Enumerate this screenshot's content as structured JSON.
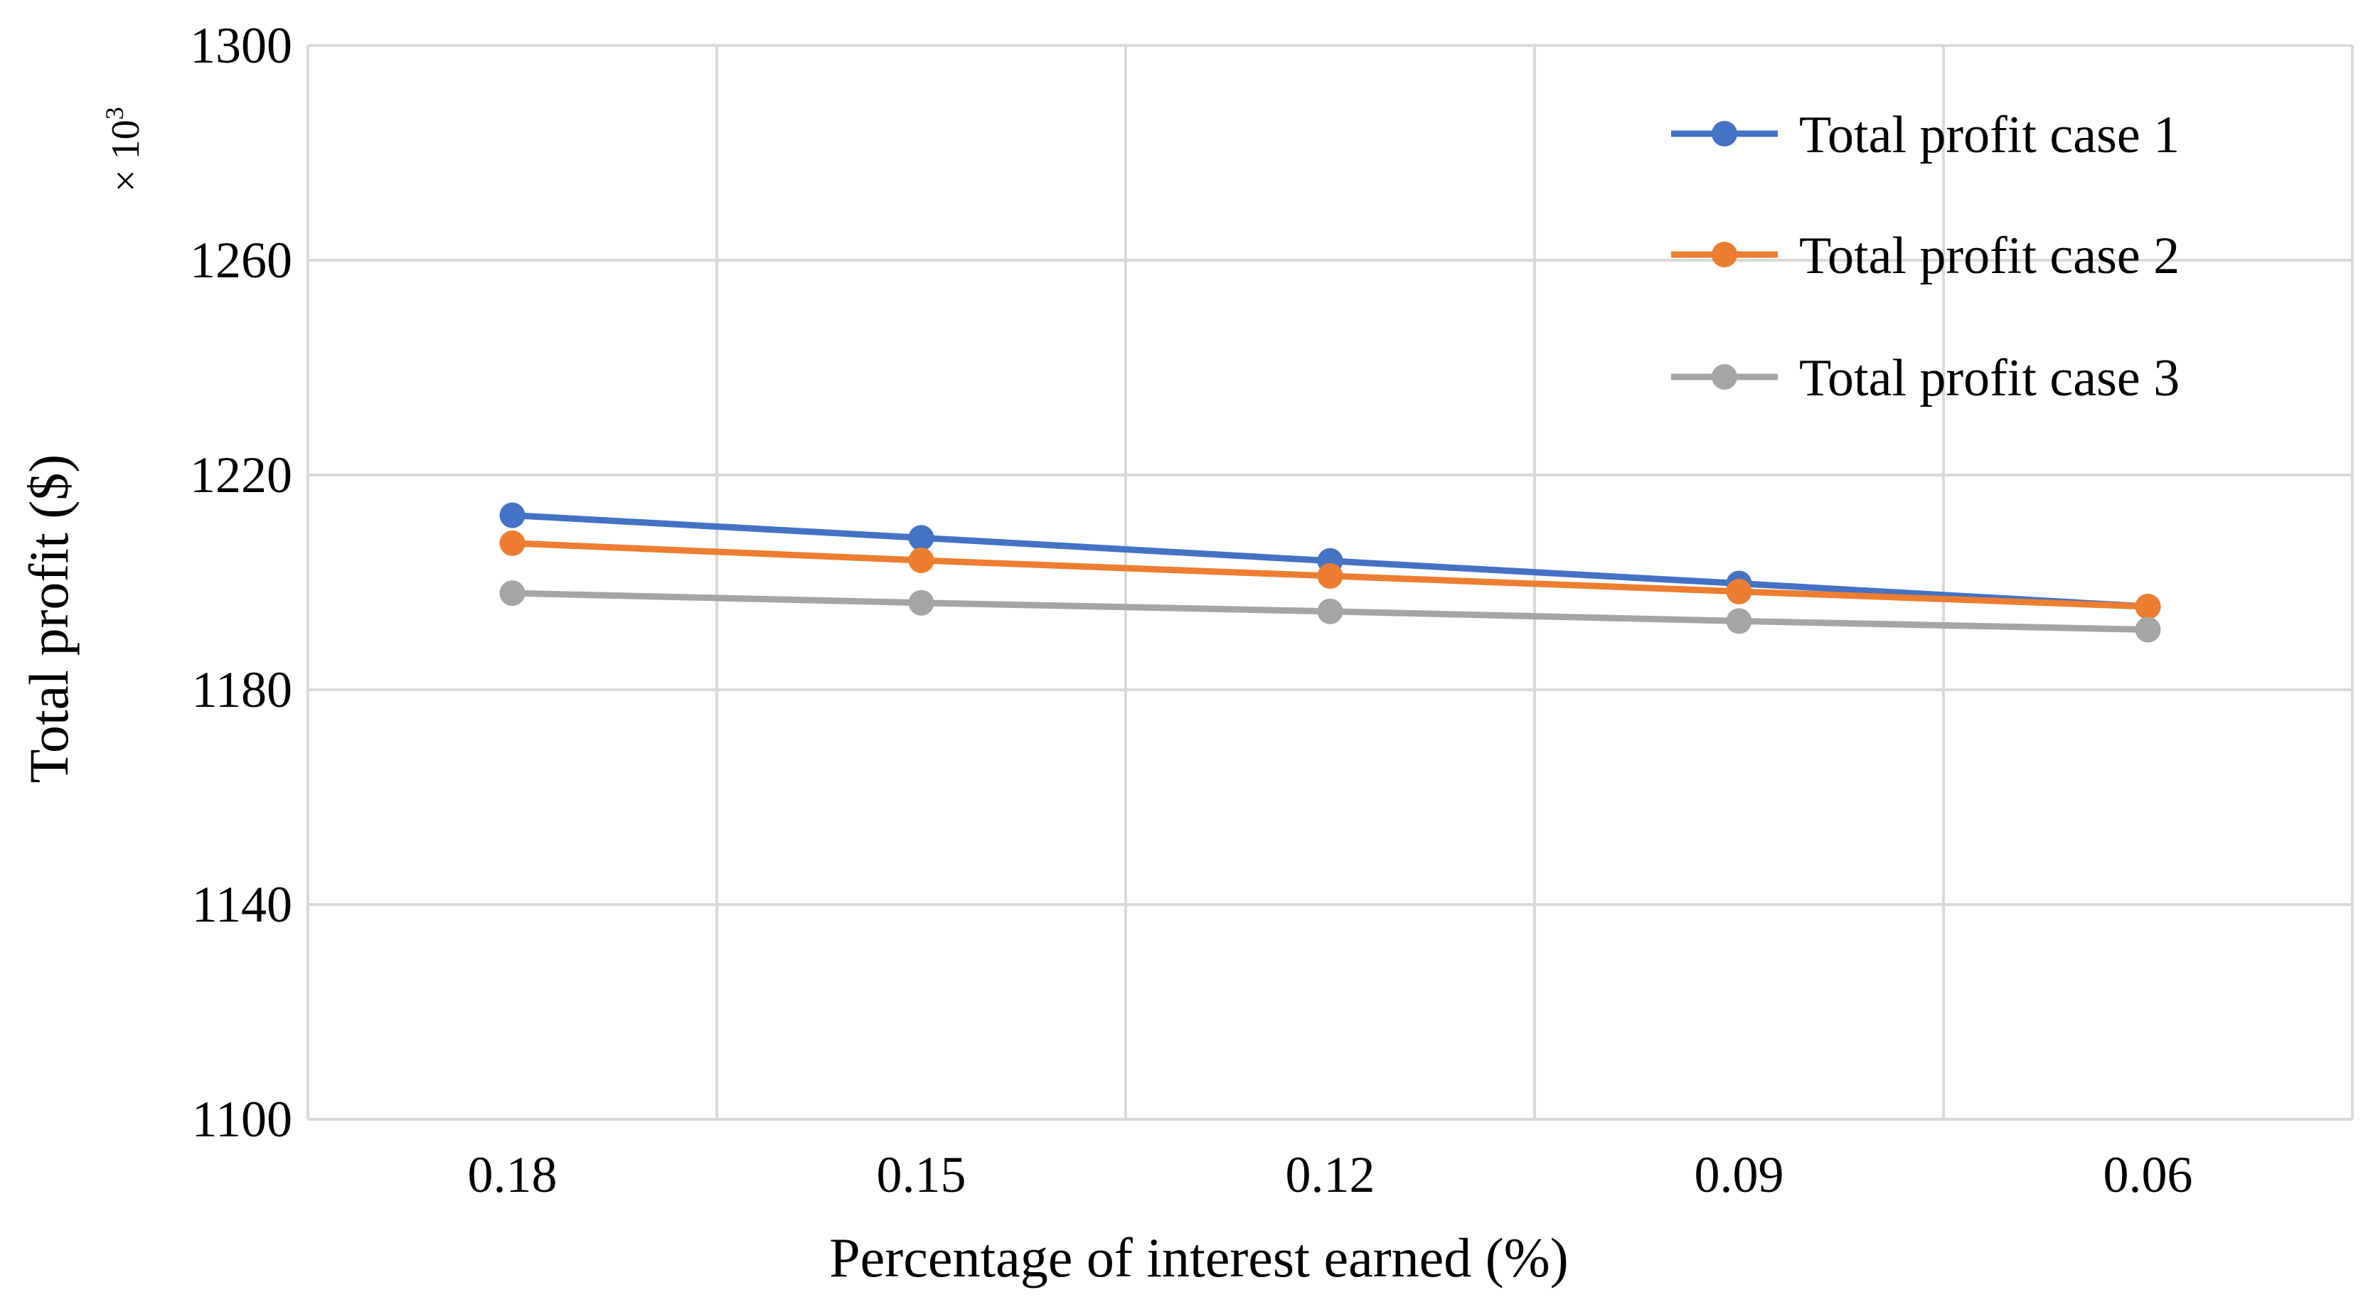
{
  "chart_data": {
    "type": "line",
    "categories": [
      "0.18",
      "0.15",
      "0.12",
      "0.09",
      "0.06"
    ],
    "series": [
      {
        "name": "Total profit case 1",
        "color": "#4472C4",
        "values": [
          1212.5,
          1208.3,
          1204.0,
          1199.8,
          1195.5
        ]
      },
      {
        "name": "Total profit case 2",
        "color": "#ED7D31",
        "values": [
          1207.3,
          1204.1,
          1201.2,
          1198.3,
          1195.5
        ]
      },
      {
        "name": "Total profit case 3",
        "color": "#A5A5A5",
        "values": [
          1198.0,
          1196.2,
          1194.6,
          1192.8,
          1191.2
        ]
      }
    ],
    "ylim": [
      1100,
      1300
    ],
    "yticks": [
      "1100",
      "1140",
      "1180",
      "1220",
      "1260",
      "1300"
    ],
    "ytick_values": [
      1100,
      1140,
      1180,
      1220,
      1260,
      1300
    ],
    "xlabel": "Percentage of interest earned (%)",
    "ylabel": "Total profit ($)",
    "y_multiplier_prefix": "× 10",
    "y_multiplier_exponent": "3",
    "grid": true,
    "legend_position": "top-right"
  }
}
